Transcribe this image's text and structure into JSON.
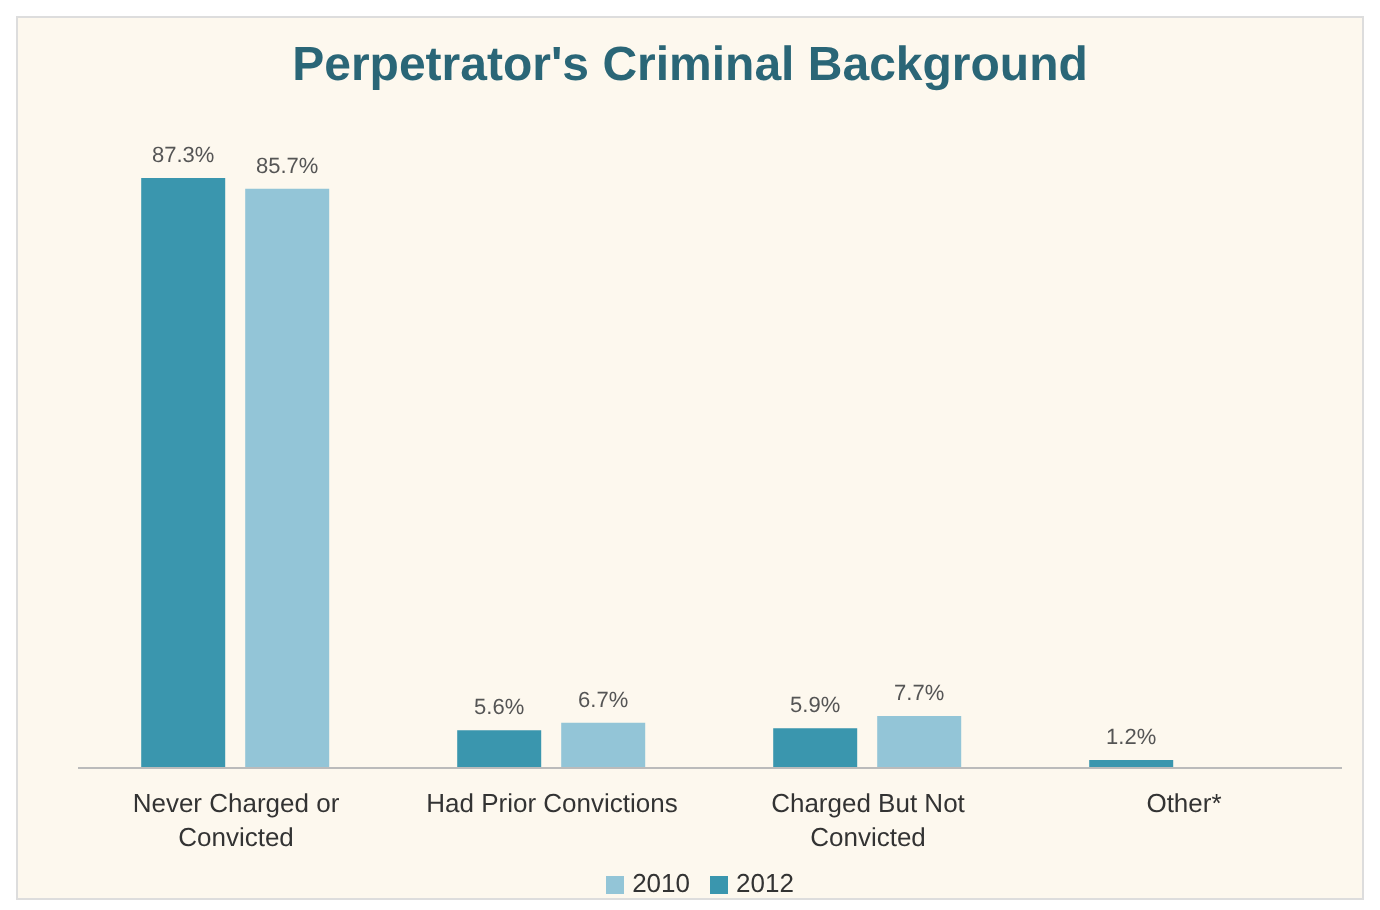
{
  "chart_data": {
    "type": "bar",
    "title": "Perpetrator's Criminal Background",
    "categories": [
      "Never Charged or Convicted",
      "Had Prior Convictions",
      "Charged But Not Convicted",
      "Other*"
    ],
    "series": [
      {
        "name": "2012",
        "color": "#3a96ae",
        "values": [
          87.3,
          5.6,
          5.9,
          1.2
        ],
        "value_labels": [
          "87.3%",
          "5.6%",
          "5.9%",
          "1.2%"
        ]
      },
      {
        "name": "2010",
        "color": "#93c5d7",
        "values": [
          85.7,
          6.7,
          7.7,
          null
        ],
        "value_labels": [
          "85.7%",
          "6.7%",
          "7.7%",
          null
        ]
      }
    ],
    "legend": "bottom",
    "grid": false
  }
}
